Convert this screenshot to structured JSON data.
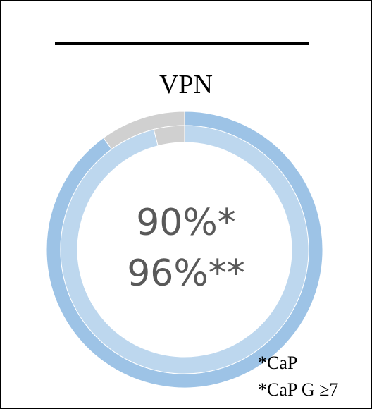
{
  "title": "VPN",
  "chart_data": {
    "type": "pie",
    "style": "nested-donut",
    "title": "VPN",
    "series": [
      {
        "values": [
          90,
          10
        ],
        "colors": [
          "#9DC3E6",
          "#D0D0D0"
        ]
      },
      {
        "values": [
          96,
          4
        ],
        "colors": [
          "#BDD7EE",
          "#D0D0D0"
        ]
      }
    ],
    "center_labels": [
      "90%*",
      "96%**"
    ]
  },
  "footnotes": [
    "*CaP",
    "*CaP G ≥7"
  ]
}
